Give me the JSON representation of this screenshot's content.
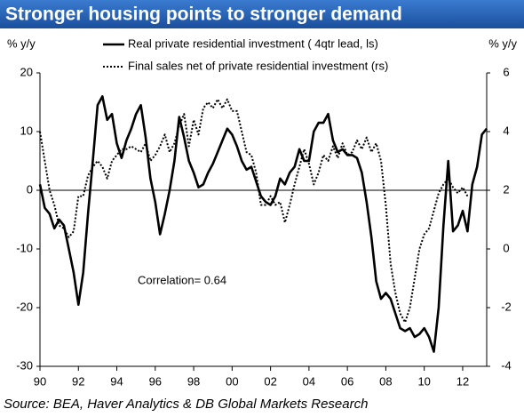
{
  "chart_data": {
    "type": "line",
    "title": "Stronger housing points to stronger demand",
    "y_label": "% y/y",
    "y2_label": "% y/y",
    "annotation": "Correlation= 0.64",
    "source": "Source: BEA, Haver Analytics & DB Global Markets Research",
    "xlim": [
      1990,
      2013.25
    ],
    "xticks": [
      {
        "value": 1990,
        "label": "90"
      },
      {
        "value": 1992,
        "label": "92"
      },
      {
        "value": 1994,
        "label": "94"
      },
      {
        "value": 1996,
        "label": "96"
      },
      {
        "value": 1998,
        "label": "98"
      },
      {
        "value": 2000,
        "label": "00"
      },
      {
        "value": 2002,
        "label": "02"
      },
      {
        "value": 2004,
        "label": "04"
      },
      {
        "value": 2006,
        "label": "06"
      },
      {
        "value": 2008,
        "label": "08"
      },
      {
        "value": 2010,
        "label": "10"
      },
      {
        "value": 2012,
        "label": "12"
      }
    ],
    "ylim": [
      -30,
      20
    ],
    "yticks": [
      -30,
      -20,
      -10,
      0,
      10,
      20
    ],
    "y2lim": [
      -4,
      6
    ],
    "y2ticks": [
      -4,
      -2,
      0,
      2,
      4,
      6
    ],
    "series": [
      {
        "name": "Real private residential investment ( 4qtr lead, ls)",
        "color": "#000000",
        "style": "solid",
        "axis": "y",
        "x": [
          1990,
          1990.25,
          1990.5,
          1990.75,
          1991,
          1991.25,
          1991.5,
          1991.75,
          1992,
          1992.25,
          1992.5,
          1992.75,
          1993,
          1993.25,
          1993.5,
          1993.75,
          1994,
          1994.25,
          1994.5,
          1994.75,
          1995,
          1995.25,
          1995.5,
          1995.75,
          1996,
          1996.25,
          1996.5,
          1996.75,
          1997,
          1997.25,
          1997.5,
          1997.75,
          1998,
          1998.25,
          1998.5,
          1998.75,
          1999,
          1999.25,
          1999.5,
          1999.75,
          2000,
          2000.25,
          2000.5,
          2000.75,
          2001,
          2001.25,
          2001.5,
          2001.75,
          2002,
          2002.25,
          2002.5,
          2002.75,
          2003,
          2003.25,
          2003.5,
          2003.75,
          2004,
          2004.25,
          2004.5,
          2004.75,
          2005,
          2005.25,
          2005.5,
          2005.75,
          2006,
          2006.25,
          2006.5,
          2006.75,
          2007,
          2007.25,
          2007.5,
          2007.75,
          2008,
          2008.25,
          2008.5,
          2008.75,
          2009,
          2009.25,
          2009.5,
          2009.75,
          2010,
          2010.25,
          2010.5,
          2010.75,
          2011,
          2011.25,
          2011.5,
          2011.75,
          2012,
          2012.25,
          2012.5,
          2012.75,
          2013,
          2013.25
        ],
        "values": [
          1,
          -3,
          -4,
          -6.5,
          -5,
          -6,
          -10,
          -14,
          -19.5,
          -14,
          -4,
          5,
          14.5,
          16,
          12,
          13,
          8,
          5.5,
          8.5,
          10.5,
          13,
          14.5,
          9,
          2,
          -2,
          -7.5,
          -4,
          0,
          5,
          12.5,
          9,
          5,
          3,
          0.5,
          1,
          3,
          4.5,
          6.5,
          8.5,
          10.5,
          9.5,
          7.5,
          5,
          3.5,
          4,
          1.5,
          -1,
          -2,
          -2.5,
          -1,
          2,
          1,
          3,
          4,
          7,
          5,
          5,
          10,
          11.5,
          11.5,
          13,
          8.5,
          6.5,
          7,
          6,
          6,
          5.5,
          3,
          -2,
          -8,
          -15.5,
          -18.5,
          -17.5,
          -18.5,
          -21,
          -23.5,
          -24,
          -23.5,
          -25,
          -24.5,
          -23.5,
          -25,
          -27.5,
          -20,
          -6,
          5,
          -7,
          -6,
          -3.5,
          -7,
          1,
          4,
          9.5,
          10.5
        ]
      },
      {
        "name": "Final sales net of private residential investment (rs)",
        "color": "#000000",
        "style": "dotted",
        "axis": "y2",
        "x": [
          1990,
          1990.25,
          1990.5,
          1990.75,
          1991,
          1991.25,
          1991.5,
          1991.75,
          1992,
          1992.25,
          1992.5,
          1992.75,
          1993,
          1993.25,
          1993.5,
          1993.75,
          1994,
          1994.25,
          1994.5,
          1994.75,
          1995,
          1995.25,
          1995.5,
          1995.75,
          1996,
          1996.25,
          1996.5,
          1996.75,
          1997,
          1997.25,
          1997.5,
          1997.75,
          1998,
          1998.25,
          1998.5,
          1998.75,
          1999,
          1999.25,
          1999.5,
          1999.75,
          2000,
          2000.25,
          2000.5,
          2000.75,
          2001,
          2001.25,
          2001.5,
          2001.75,
          2002,
          2002.25,
          2002.5,
          2002.75,
          2003,
          2003.25,
          2003.5,
          2003.75,
          2004,
          2004.25,
          2004.5,
          2004.75,
          2005,
          2005.25,
          2005.5,
          2005.75,
          2006,
          2006.25,
          2006.5,
          2006.75,
          2007,
          2007.25,
          2007.5,
          2007.75,
          2008,
          2008.25,
          2008.5,
          2008.75,
          2009,
          2009.25,
          2009.5,
          2009.75,
          2010,
          2010.25,
          2010.5,
          2010.75,
          2011,
          2011.25,
          2011.5,
          2011.75,
          2012,
          2012.25
        ],
        "values": [
          4,
          3,
          2,
          1.5,
          0.8,
          0.7,
          0.4,
          0.6,
          1.8,
          1.8,
          2.5,
          2.8,
          3,
          2.8,
          2.4,
          3,
          3.2,
          3.4,
          3.4,
          3.5,
          3.4,
          3.3,
          3.6,
          3,
          3.2,
          3.5,
          3.9,
          3.3,
          3.6,
          4.2,
          4.6,
          3.5,
          4.4,
          3.9,
          4.8,
          5,
          4.8,
          5.1,
          4.8,
          5.1,
          4.7,
          4.7,
          4,
          3.3,
          3.2,
          2.6,
          1.5,
          1.5,
          1.8,
          1.5,
          1.6,
          0.9,
          1.5,
          2.2,
          2.8,
          3.4,
          2.9,
          2.2,
          2.6,
          3.2,
          3,
          3.5,
          3.1,
          3.6,
          3.2,
          3.3,
          3.7,
          3.4,
          3.8,
          3.3,
          3.6,
          3,
          1.5,
          -0.5,
          -1.5,
          -2.2,
          -2.5,
          -2,
          -1,
          0,
          0.5,
          0.7,
          1.3,
          1.9,
          2.2,
          2.4,
          2.1,
          1.9,
          2.1,
          1.8
        ]
      }
    ]
  }
}
